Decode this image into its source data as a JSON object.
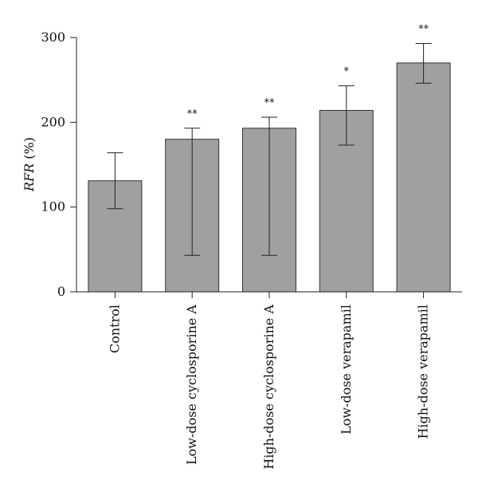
{
  "chart_data": {
    "type": "bar",
    "title": "",
    "xlabel": "",
    "ylabel_italic": "RFR",
    "ylabel_unit": " (%)",
    "ylim": [
      0,
      300
    ],
    "yticks": [
      0,
      100,
      200,
      300
    ],
    "grid": false,
    "colors": {
      "bar": "#a0a0a0",
      "bar_edge": "#333333",
      "axis": "#222222"
    },
    "categories": [
      "Control",
      "Low-dose cyclosporine A",
      "High-dose cyclosporine A",
      "Low-dose verapamil",
      "High-dose verapamil"
    ],
    "values": [
      131,
      180,
      193,
      214,
      270
    ],
    "error_lower": [
      98,
      43,
      43,
      173,
      246
    ],
    "error_upper": [
      164,
      193,
      206,
      243,
      293
    ],
    "significance": [
      "",
      "**",
      "**",
      "*",
      "**"
    ]
  }
}
